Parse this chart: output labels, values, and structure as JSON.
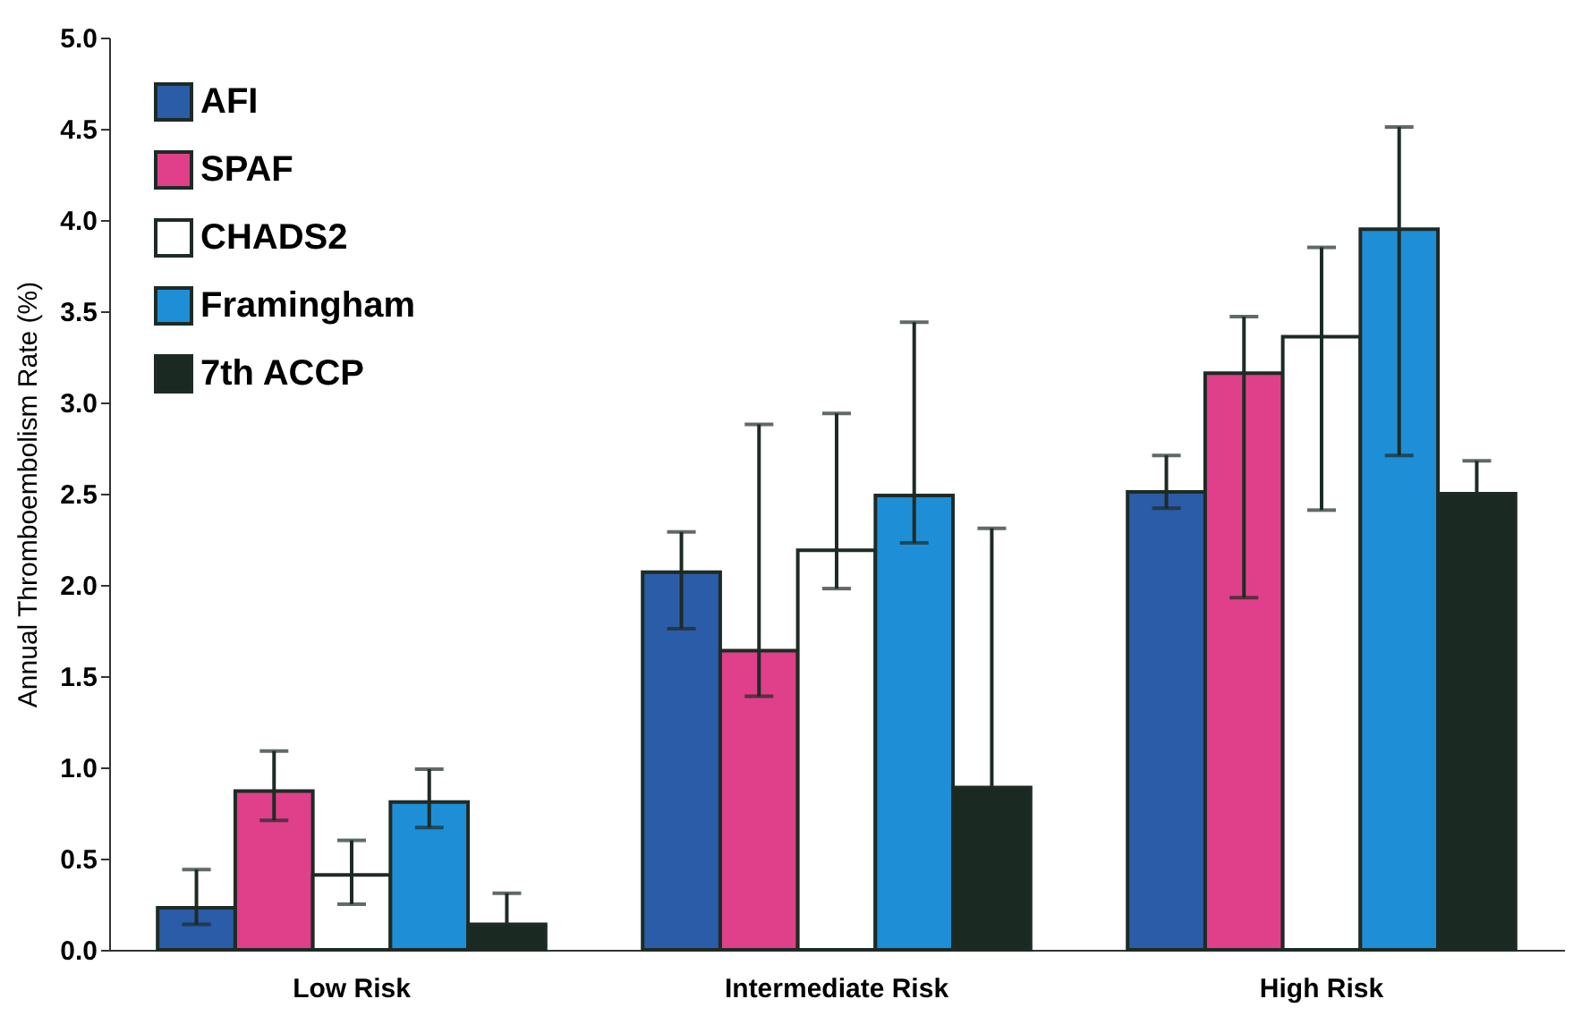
{
  "chart_data": {
    "type": "bar",
    "ylabel": "Annual Thromboembolism Rate (%)",
    "categories": [
      "Low Risk",
      "Intermediate Risk",
      "High Risk"
    ],
    "series": [
      {
        "name": "AFI",
        "color": "#2b5ca8",
        "values": [
          0.23,
          2.07,
          2.51
        ],
        "errors": [
          [
            0.14,
            0.44
          ],
          [
            1.76,
            2.29
          ],
          [
            2.42,
            2.71
          ]
        ]
      },
      {
        "name": "SPAF",
        "color": "#e0408a",
        "values": [
          0.87,
          1.64,
          3.16
        ],
        "errors": [
          [
            0.71,
            1.09
          ],
          [
            1.39,
            2.88
          ],
          [
            1.93,
            3.47
          ]
        ]
      },
      {
        "name": "CHADS2",
        "color": "#ffffff",
        "values": [
          0.41,
          2.19,
          3.36
        ],
        "errors": [
          [
            0.25,
            0.6
          ],
          [
            1.98,
            2.94
          ],
          [
            2.41,
            3.85
          ]
        ]
      },
      {
        "name": "Framingham",
        "color": "#1e8fd6",
        "values": [
          0.81,
          2.49,
          3.95
        ],
        "errors": [
          [
            0.67,
            0.99
          ],
          [
            2.23,
            3.44
          ],
          [
            2.71,
            4.51
          ]
        ]
      },
      {
        "name": "7th ACCP",
        "color": "#1a2a22",
        "values": [
          0.14,
          0.89,
          2.5
        ],
        "errors": [
          [
            0.14,
            0.31
          ],
          [
            0.89,
            2.31
          ],
          [
            2.5,
            2.68
          ]
        ]
      }
    ],
    "ylim": [
      0,
      5
    ],
    "yticks": [
      {
        "value": 0,
        "label": "0.0"
      },
      {
        "value": 0.5,
        "label": "0.5"
      },
      {
        "value": 1,
        "label": "1.0"
      },
      {
        "value": 1.5,
        "label": "1.5"
      },
      {
        "value": 2,
        "label": "2.0"
      },
      {
        "value": 2.5,
        "label": "2.5"
      },
      {
        "value": 3,
        "label": "3.0"
      },
      {
        "value": 3.5,
        "label": "3.5"
      },
      {
        "value": 4,
        "label": "4.0"
      },
      {
        "value": 4.5,
        "label": "4.5"
      },
      {
        "value": 5,
        "label": "5.0"
      }
    ],
    "grid": false,
    "legend": "top left"
  }
}
